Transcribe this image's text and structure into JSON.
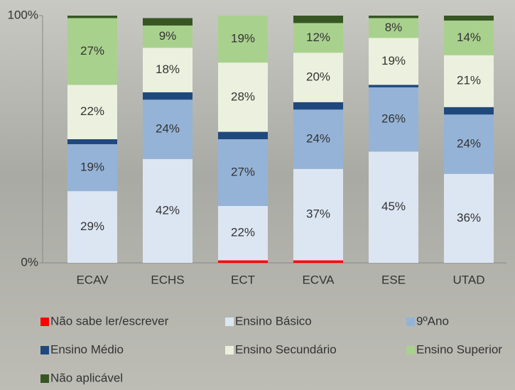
{
  "chart_data": {
    "type": "stacked-bar",
    "categories": [
      "ECAV",
      "ECHS",
      "ECT",
      "ECVA",
      "ESE",
      "UTAD"
    ],
    "series": [
      {
        "name": "Não sabe ler/escrever",
        "color": "#ff0000",
        "values": [
          0,
          0,
          1,
          1,
          0,
          0
        ]
      },
      {
        "name": "Ensino Básico",
        "color": "#dce6f2",
        "values": [
          29,
          42,
          22,
          37,
          45,
          36
        ],
        "value_labels": [
          "29%",
          "42%",
          "22%",
          "37%",
          "45%",
          "36%"
        ]
      },
      {
        "name": "9ºAno",
        "color": "#95b3d7",
        "values": [
          19,
          24,
          27,
          24,
          26,
          24
        ],
        "value_labels": [
          "19%",
          "24%",
          "27%",
          "24%",
          "26%",
          "24%"
        ]
      },
      {
        "name": "Ensino Médio",
        "color": "#1f497d",
        "values": [
          2,
          3,
          3,
          3,
          1,
          3
        ]
      },
      {
        "name": "Ensino Secundário",
        "color": "#ebf1de",
        "values": [
          22,
          18,
          28,
          20,
          19,
          21
        ],
        "value_labels": [
          "22%",
          "18%",
          "28%",
          "20%",
          "19%",
          "21%"
        ]
      },
      {
        "name": "Ensino Superior",
        "color": "#a9d18e",
        "values": [
          27,
          9,
          19,
          12,
          8,
          14
        ],
        "value_labels": [
          "27%",
          "9%",
          "19%",
          "12%",
          "8%",
          "14%"
        ]
      },
      {
        "name": "Não aplicável",
        "color": "#375623",
        "values": [
          1,
          3,
          0,
          3,
          1,
          2
        ]
      }
    ],
    "ylim": [
      0,
      100
    ],
    "yticks": [
      {
        "value": 0,
        "label": "0%"
      },
      {
        "value": 100,
        "label": "100%"
      }
    ],
    "grid": false
  }
}
